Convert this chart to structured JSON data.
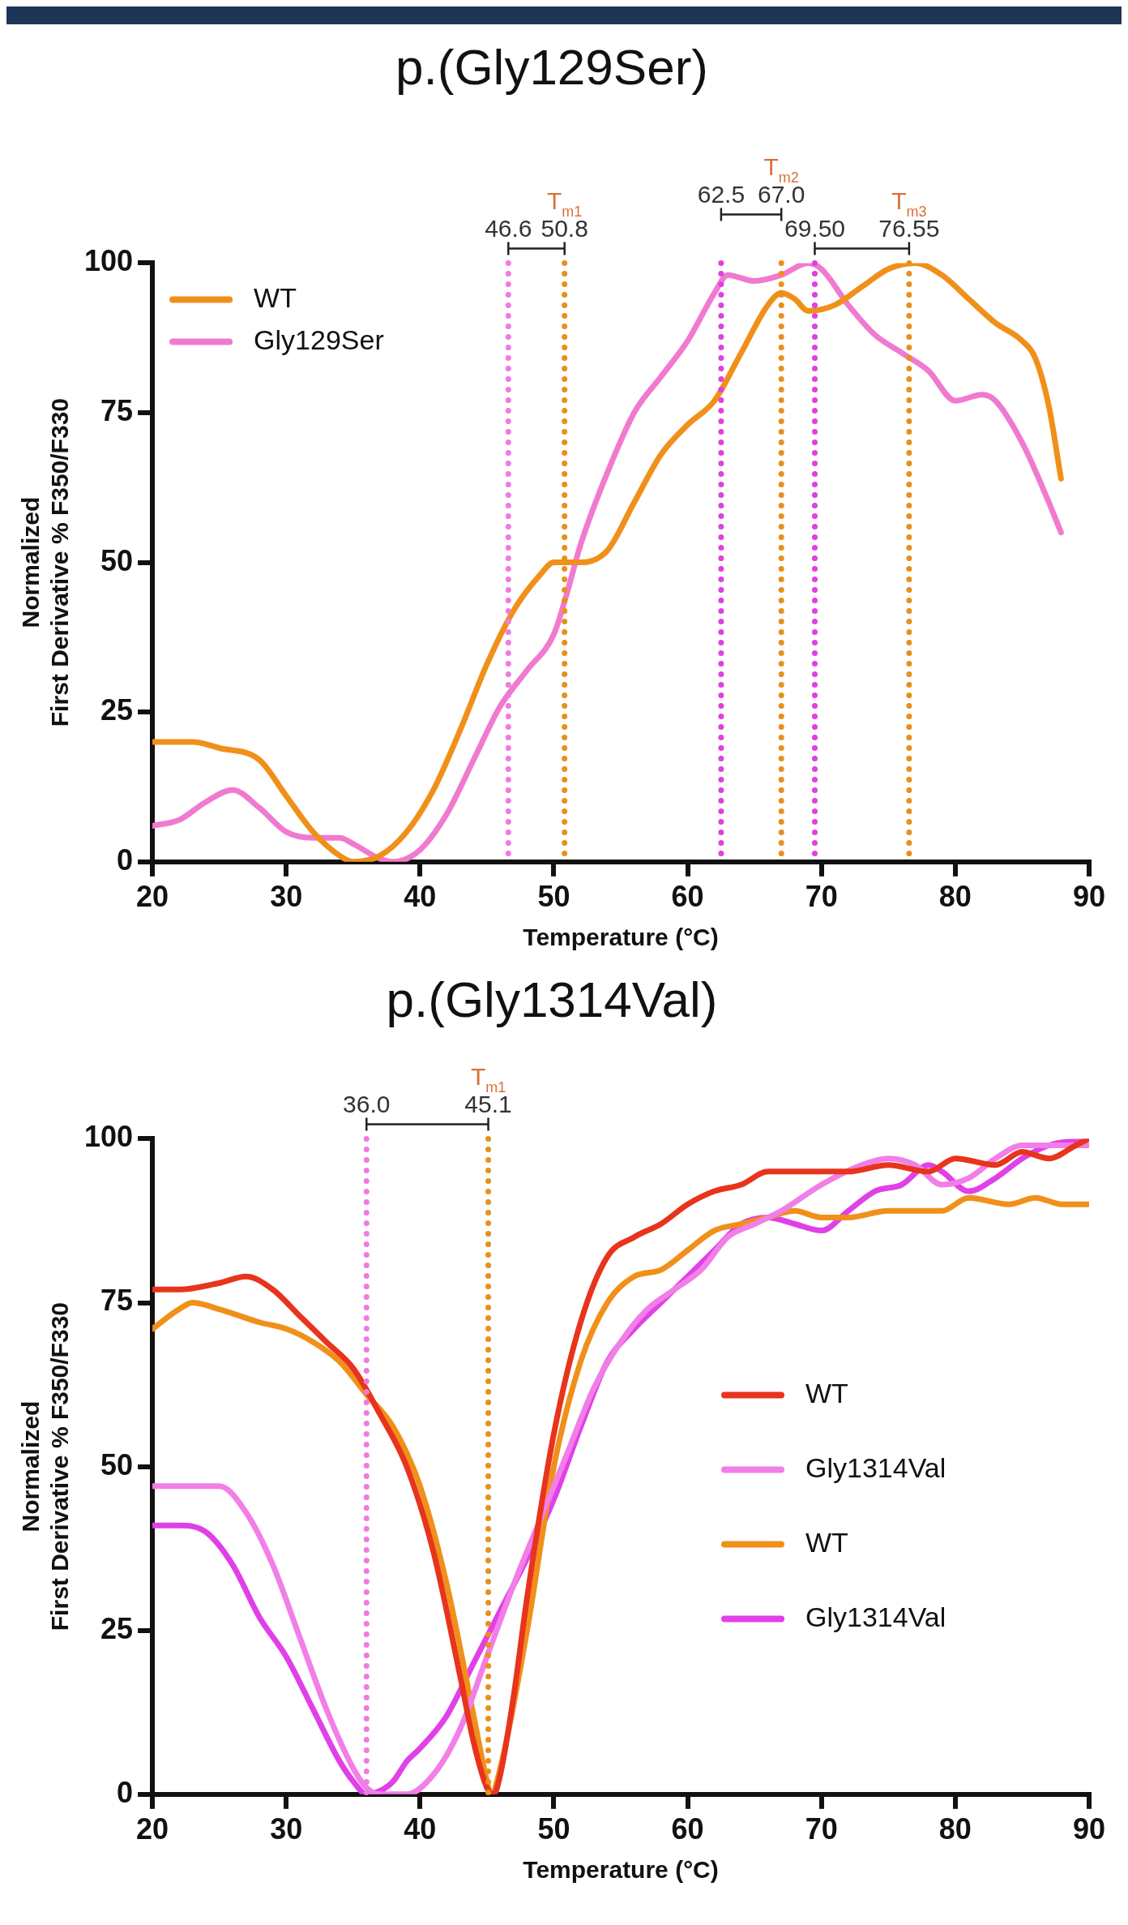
{
  "chart_data": [
    {
      "type": "line",
      "title": "p.(Gly129Ser)",
      "xlabel": "Temperature (°C)",
      "ylabel": "Normalized\nFirst Derivative % F350/F330",
      "xlim": [
        20,
        90
      ],
      "xticks": [
        20,
        30,
        40,
        50,
        60,
        70,
        80,
        90
      ],
      "ylim": [
        0,
        100
      ],
      "yticks": [
        0,
        25,
        50,
        75,
        100
      ],
      "grid": false,
      "legend": "top left",
      "marker": "none",
      "line_style": "solid",
      "series": [
        {
          "name": "WT",
          "color": "#f0901a",
          "x": [
            20,
            23,
            25,
            28,
            30,
            32,
            34,
            35,
            37,
            39,
            41,
            43,
            45,
            47,
            49,
            50,
            52,
            54,
            56,
            58,
            60,
            62,
            64,
            66,
            67,
            68,
            69,
            71,
            73,
            75,
            77,
            79,
            81,
            83,
            85,
            86,
            87,
            87.9
          ],
          "values": [
            20,
            20,
            19,
            17,
            11,
            5,
            1,
            0,
            1,
            5,
            12,
            22,
            33,
            42,
            48,
            50,
            50,
            52,
            60,
            68,
            73,
            77,
            85,
            93,
            95,
            94,
            92,
            93,
            96,
            99,
            100,
            98,
            94,
            90,
            87,
            84,
            76,
            64
          ]
        },
        {
          "name": "Gly129Ser",
          "color": "#f07ad0",
          "x": [
            20,
            22,
            24,
            26,
            28,
            30,
            32,
            34,
            35,
            37,
            38,
            40,
            42,
            44,
            46,
            48,
            50,
            51,
            52,
            54,
            56,
            58,
            60,
            62,
            63,
            65,
            67,
            69,
            70,
            72,
            74,
            76,
            78,
            80,
            82,
            83,
            85,
            87,
            87.9
          ],
          "values": [
            6,
            7,
            10,
            12,
            9,
            5,
            4,
            4,
            3,
            0.5,
            0,
            2,
            8,
            17,
            26,
            32,
            38,
            45,
            53,
            65,
            75,
            81,
            87,
            95,
            98,
            97,
            98,
            100,
            99,
            93,
            88,
            85,
            82,
            77,
            78,
            77,
            70,
            60,
            55
          ]
        }
      ],
      "ref_lines": [
        {
          "axis": "x",
          "value": 46.6,
          "label": "46.6",
          "color": "#f07ae0",
          "line_style": "dotted"
        },
        {
          "axis": "x",
          "value": 50.8,
          "label": "50.8",
          "color": "#e8901a",
          "line_style": "dotted"
        },
        {
          "axis": "x",
          "value": 62.5,
          "label": "62.5",
          "color": "#e040e0",
          "line_style": "dotted"
        },
        {
          "axis": "x",
          "value": 67.0,
          "label": "67.0",
          "color": "#e8901a",
          "line_style": "dotted"
        },
        {
          "axis": "x",
          "value": 69.5,
          "label": "69.50",
          "color": "#e040e0",
          "line_style": "dotted"
        },
        {
          "axis": "x",
          "value": 76.55,
          "label": "76.55",
          "color": "#e8901a",
          "line_style": "dotted"
        }
      ],
      "annotations": [
        "T$_{m1}$",
        "T$_{m2}$",
        "T$_{m3}$"
      ]
    },
    {
      "type": "line",
      "title": "p.(Gly1314Val)",
      "xlabel": "Temperature (°C)",
      "ylabel": "Normalized\nFirst Derivative % F350/F330",
      "xlim": [
        20,
        90
      ],
      "xticks": [
        20,
        30,
        40,
        50,
        60,
        70,
        80,
        90
      ],
      "ylim": [
        0,
        100
      ],
      "yticks": [
        0,
        25,
        50,
        75,
        100
      ],
      "grid": false,
      "legend": "right",
      "marker": "none",
      "line_style": "solid",
      "series": [
        {
          "name": "WT",
          "color": "#e8341c",
          "x": [
            20,
            22,
            25,
            27,
            29,
            31,
            33,
            35,
            37,
            39,
            41,
            43,
            44,
            45,
            45.5,
            46,
            47,
            48,
            50,
            52,
            54,
            56,
            58,
            60,
            62,
            64,
            66,
            68,
            70,
            72,
            75,
            78,
            80,
            83,
            85,
            87,
            89,
            90
          ],
          "values": [
            77,
            77,
            78,
            79,
            77,
            73,
            69,
            65,
            58,
            50,
            37,
            18,
            8,
            1,
            0,
            3,
            15,
            30,
            55,
            72,
            82,
            85,
            87,
            90,
            92,
            93,
            95,
            95,
            95,
            95,
            96,
            95,
            97,
            96,
            98,
            97,
            99,
            100
          ]
        },
        {
          "name": "Gly1314Val",
          "color": "#f27ee8",
          "x": [
            20,
            23,
            25,
            27,
            29,
            31,
            33,
            35,
            36,
            37,
            39,
            41,
            43,
            45,
            47,
            49,
            51,
            53,
            55,
            57,
            59,
            61,
            63,
            65,
            67,
            70,
            73,
            75,
            77,
            79,
            81,
            83,
            85,
            87,
            90
          ],
          "values": [
            47,
            47,
            47,
            43,
            35,
            24,
            13,
            4,
            1,
            0,
            0,
            3,
            10,
            21,
            32,
            42,
            52,
            62,
            69,
            74,
            77,
            80,
            85,
            87,
            89,
            93,
            96,
            97,
            96,
            93,
            94,
            97,
            99,
            99,
            99
          ]
        },
        {
          "name": "WT",
          "color": "#f0901a",
          "x": [
            20,
            22,
            23,
            25,
            28,
            30,
            32,
            34,
            36,
            38,
            40,
            42,
            44,
            45,
            45.3,
            46,
            48,
            50,
            52,
            54,
            56,
            58,
            60,
            62,
            64,
            66,
            68,
            70,
            72,
            75,
            79,
            81,
            84,
            86,
            88,
            90
          ],
          "values": [
            71,
            74,
            75,
            74,
            72,
            71,
            69,
            66,
            61,
            56,
            47,
            32,
            12,
            2,
            0,
            4,
            25,
            50,
            66,
            75,
            79,
            80,
            83,
            86,
            87,
            88,
            89,
            88,
            88,
            89,
            89,
            91,
            90,
            91,
            90,
            90
          ]
        },
        {
          "name": "Gly1314Val",
          "color": "#e040e8",
          "x": [
            20,
            22,
            24,
            26,
            28,
            30,
            32,
            34,
            35,
            36,
            37,
            38,
            39,
            40,
            42,
            44,
            46,
            48,
            50,
            52,
            54,
            56,
            58,
            60,
            62,
            64,
            66,
            68,
            70,
            72,
            74,
            76,
            78,
            79,
            81,
            83,
            85,
            87,
            90
          ],
          "values": [
            41,
            41,
            40,
            35,
            27,
            21,
            13,
            5,
            2,
            0,
            0.5,
            2,
            5,
            7,
            12,
            20,
            28,
            36,
            45,
            56,
            66,
            71,
            75,
            79,
            83,
            87,
            88,
            87,
            86,
            89,
            92,
            93,
            96,
            95,
            92,
            94,
            97,
            99,
            100
          ]
        }
      ],
      "ref_lines": [
        {
          "axis": "x",
          "value": 36.0,
          "label": "36.0",
          "color": "#f07ae0",
          "line_style": "dotted"
        },
        {
          "axis": "x",
          "value": 45.1,
          "label": "45.1",
          "color": "#e8901a",
          "line_style": "dotted"
        }
      ],
      "annotations": [
        "T$_{m1}$"
      ]
    }
  ]
}
